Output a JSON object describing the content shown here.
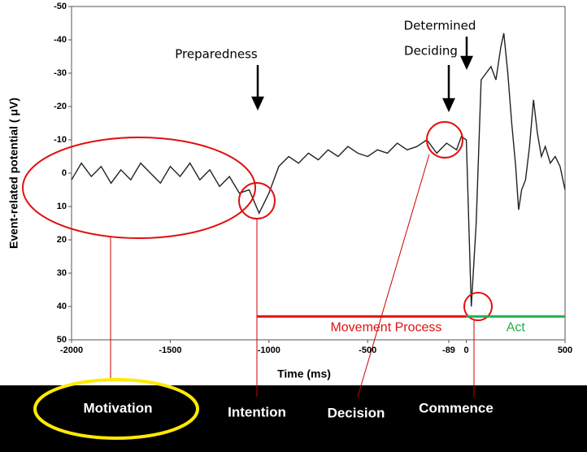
{
  "chart_data": {
    "type": "line",
    "x_label": "Time (ms)",
    "y_label": "Event-related potential ( μV)",
    "x": [
      -2000,
      -1950,
      -1900,
      -1850,
      -1800,
      -1750,
      -1700,
      -1650,
      -1600,
      -1550,
      -1500,
      -1450,
      -1400,
      -1350,
      -1300,
      -1250,
      -1200,
      -1150,
      -1100,
      -1050,
      -1000,
      -950,
      -900,
      -850,
      -800,
      -750,
      -700,
      -650,
      -600,
      -550,
      -500,
      -450,
      -400,
      -350,
      -300,
      -250,
      -200,
      -150,
      -100,
      -50,
      -25,
      0,
      10,
      25,
      50,
      75,
      100,
      125,
      150,
      175,
      190,
      210,
      230,
      250,
      265,
      280,
      300,
      320,
      340,
      360,
      380,
      400,
      425,
      450,
      475,
      500
    ],
    "series": [
      {
        "color": "#222222",
        "values": [
          2,
          -3,
          1,
          -2,
          3,
          -1,
          2,
          -3,
          0,
          3,
          -2,
          1,
          -3,
          2,
          -1,
          4,
          1,
          6,
          5,
          12,
          6,
          -2,
          -5,
          -3,
          -6,
          -4,
          -7,
          -5,
          -8,
          -6,
          -5,
          -7,
          -6,
          -9,
          -7,
          -8,
          -10,
          -6,
          -9,
          -7,
          -11,
          -10,
          10,
          40,
          15,
          -28,
          -30,
          -32,
          -28,
          -38,
          -42,
          -30,
          -15,
          -2,
          11,
          5,
          2,
          -8,
          -22,
          -12,
          -5,
          -8,
          -3,
          -5,
          -2,
          5
        ]
      }
    ],
    "xlim": [
      -2000,
      500
    ],
    "xticks": [
      -2000,
      -1500,
      -1000,
      -500,
      -89,
      0,
      500
    ],
    "ylim": [
      -50,
      50
    ],
    "yticks": [
      -50,
      -40,
      -30,
      -20,
      -10,
      0,
      10,
      20,
      30,
      40,
      50
    ],
    "y_inverted": true,
    "annotations": [
      "Preparedness",
      "Determined",
      "Deciding"
    ],
    "phases": [
      {
        "label": "Movement Process",
        "start": -1060,
        "end": 0,
        "level": 43,
        "color": "#e01010"
      },
      {
        "label": "Act",
        "start": 0,
        "end": 500,
        "level": 43,
        "color": "#22b04a"
      }
    ],
    "stages": [
      "Motivation",
      "Intention",
      "Decision",
      "Commence"
    ]
  }
}
